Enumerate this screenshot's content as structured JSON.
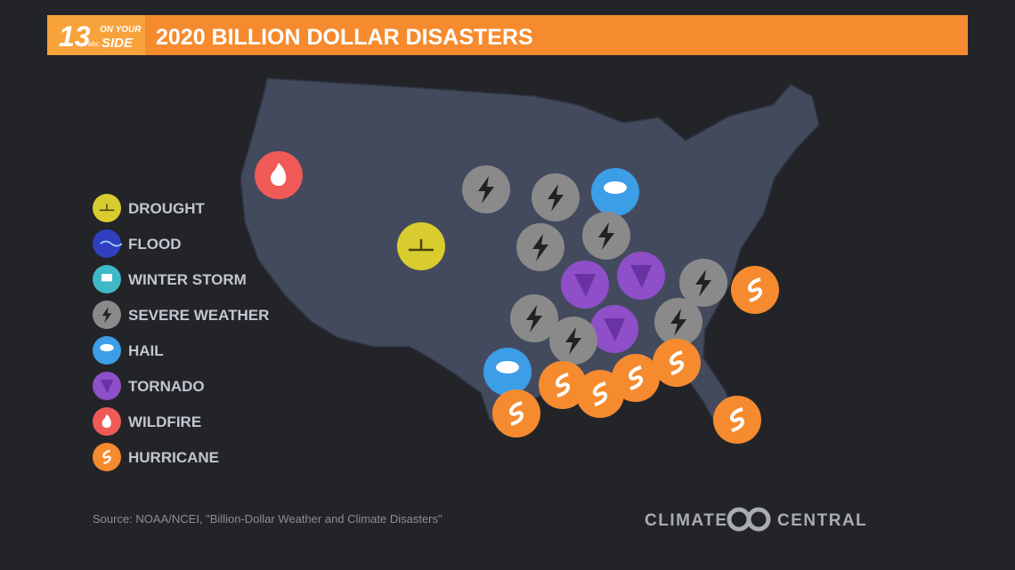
{
  "header": {
    "logo": {
      "number": "13",
      "station": "abc",
      "tagline_top": "ON YOUR",
      "tagline_bottom": "SIDE"
    },
    "title": "2020 BILLION DOLLAR DISASTERS"
  },
  "legend": [
    {
      "label": "DROUGHT",
      "color": "#d9cc2e"
    },
    {
      "label": "FLOOD",
      "color": "#2f3fbf"
    },
    {
      "label": "WINTER STORM",
      "color": "#3fb8c8"
    },
    {
      "label": "SEVERE WEATHER",
      "color": "#8a8a8a"
    },
    {
      "label": "HAIL",
      "color": "#3b9ee6"
    },
    {
      "label": "TORNADO",
      "color": "#8e4fc9"
    },
    {
      "label": "WILDFIRE",
      "color": "#ef5a57"
    },
    {
      "label": "HURRICANE",
      "color": "#f58b2e"
    }
  ],
  "source": "Source: NOAA/NCEI, \"Billion-Dollar Weather and Climate Disasters\"",
  "brand": {
    "left": "CLIMATE",
    "right": "CENTRAL"
  }
}
